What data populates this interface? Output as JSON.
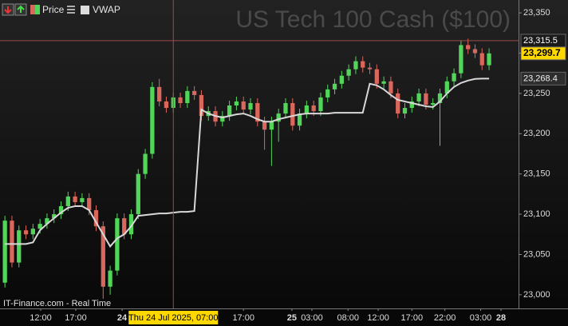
{
  "chart_data": {
    "type": "candlestick",
    "title": "US Tech 100 Cash ($100)",
    "source": "IT-Finance.com - Real Time",
    "series": [
      {
        "name": "Price",
        "up_color": "#52d65a",
        "down_color": "#d9675c",
        "open": [
          23015,
          23092,
          23040,
          23080,
          23075,
          23082,
          23088,
          23095,
          23100,
          23110,
          23122,
          23115,
          23120,
          23105,
          23085,
          23010,
          23030,
          23095,
          23075,
          23100,
          23150,
          23175,
          23258,
          23240,
          23232,
          23245,
          23238,
          23253,
          23248,
          23222,
          23228,
          23215,
          23222,
          23235,
          23240,
          23230,
          23238,
          23215,
          23205,
          23215,
          23225,
          23238,
          23210,
          23225,
          23235,
          23228,
          23245,
          23255,
          23262,
          23272,
          23280,
          23290,
          23282,
          23280,
          23262,
          23265,
          23250,
          23225,
          23232,
          23240,
          23250,
          23236,
          23238,
          23250,
          23265,
          23275,
          23310,
          23305,
          23300,
          23285
        ],
        "high": [
          23098,
          23098,
          23086,
          23086,
          23088,
          23094,
          23101,
          23106,
          23116,
          23128,
          23128,
          23126,
          23126,
          23111,
          23091,
          23036,
          23101,
          23101,
          23106,
          23156,
          23181,
          23264,
          23268,
          23246,
          23251,
          23251,
          23259,
          23259,
          23254,
          23234,
          23234,
          23228,
          23241,
          23246,
          23246,
          23244,
          23244,
          23221,
          23221,
          23231,
          23244,
          23244,
          23231,
          23241,
          23241,
          23251,
          23261,
          23268,
          23278,
          23286,
          23296,
          23296,
          23288,
          23286,
          23271,
          23271,
          23256,
          23238,
          23246,
          23256,
          23256,
          23244,
          23256,
          23271,
          23281,
          23316,
          23318,
          23311,
          23306,
          23306
        ],
        "low": [
          23009,
          23034,
          23034,
          23069,
          23069,
          23076,
          23082,
          23089,
          23094,
          23104,
          23109,
          23109,
          23099,
          23079,
          22995,
          23000,
          23024,
          23069,
          23069,
          23094,
          23144,
          23169,
          23234,
          23226,
          23226,
          23232,
          23232,
          23242,
          23216,
          23216,
          23209,
          23209,
          23216,
          23229,
          23224,
          23224,
          23209,
          23180,
          23160,
          23190,
          23219,
          23204,
          23204,
          23219,
          23222,
          23222,
          23239,
          23249,
          23256,
          23266,
          23274,
          23276,
          23274,
          23256,
          23256,
          23244,
          23219,
          23219,
          23226,
          23234,
          23230,
          23230,
          23185,
          23244,
          23259,
          23269,
          23299,
          23294,
          23279,
          23279
        ],
        "close": [
          23092,
          23040,
          23080,
          23075,
          23082,
          23088,
          23095,
          23100,
          23110,
          23122,
          23115,
          23120,
          23105,
          23085,
          23010,
          23030,
          23095,
          23075,
          23100,
          23150,
          23175,
          23258,
          23240,
          23232,
          23245,
          23238,
          23253,
          23248,
          23222,
          23228,
          23215,
          23222,
          23235,
          23240,
          23230,
          23238,
          23215,
          23205,
          23215,
          23225,
          23238,
          23210,
          23225,
          23235,
          23228,
          23245,
          23255,
          23262,
          23272,
          23280,
          23290,
          23282,
          23280,
          23262,
          23265,
          23250,
          23225,
          23232,
          23240,
          23250,
          23236,
          23238,
          23250,
          23265,
          23275,
          23310,
          23305,
          23300,
          23285,
          23299.7
        ]
      },
      {
        "name": "VWAP",
        "color": "#d8d8d8",
        "values": [
          23063,
          23063,
          23063,
          23063,
          23065,
          23080,
          23088,
          23095,
          23102,
          23108,
          23110,
          23110,
          23105,
          23090,
          23075,
          23060,
          23070,
          23075,
          23085,
          23098,
          23099,
          23100,
          23101,
          23101,
          23102,
          23103,
          23103,
          23104,
          23230,
          23225,
          23222,
          23220,
          23222,
          23224,
          23225,
          23222,
          23218,
          23215,
          23215,
          23218,
          23220,
          23222,
          23224,
          23225,
          23225,
          23225,
          23225,
          23226,
          23226,
          23226,
          23226,
          23226,
          23262,
          23260,
          23255,
          23248,
          23242,
          23240,
          23238,
          23236,
          23234,
          23233,
          23240,
          23250,
          23258,
          23263,
          23266,
          23268,
          23268.4,
          23268.4
        ]
      }
    ],
    "ylim": [
      22983,
      23366
    ],
    "yticks": [
      {
        "value": 23000,
        "label": "23,000"
      },
      {
        "value": 23050,
        "label": "23,050"
      },
      {
        "value": 23100,
        "label": "23,100"
      },
      {
        "value": 23150,
        "label": "23,150"
      },
      {
        "value": 23200,
        "label": "23,200"
      },
      {
        "value": 23250,
        "label": "23,250"
      },
      {
        "value": 23300,
        "label": "23,300"
      },
      {
        "value": 23350,
        "label": "23,350"
      }
    ],
    "xlim": [
      -0.7,
      73.2
    ],
    "xticks": [
      {
        "value": 5.1,
        "label": "12:00"
      },
      {
        "value": 10.1,
        "label": "17:00"
      },
      {
        "value": 16.7,
        "label": "24"
      },
      {
        "value": 34,
        "label": "17:00"
      },
      {
        "value": 40.9,
        "label": "25"
      },
      {
        "value": 43.75,
        "label": "03:00"
      },
      {
        "value": 48.9,
        "label": "08:00"
      },
      {
        "value": 53.2,
        "label": "12:00"
      },
      {
        "value": 58,
        "label": "17:00"
      },
      {
        "value": 62.7,
        "label": "22:00"
      },
      {
        "value": 67.8,
        "label": "03:00"
      },
      {
        "value": 70.7,
        "label": "28"
      }
    ],
    "crosshair": {
      "x": {
        "value": 24,
        "label": "Thu 24 Jul 2025, 07:00"
      },
      "y": {
        "value": 23315.5,
        "label": "23,315.5"
      }
    },
    "last_price": {
      "value": 23299.7,
      "label": "23,299.7"
    },
    "vwap_last": {
      "value": 23268.4,
      "label": "23,268.4"
    }
  }
}
